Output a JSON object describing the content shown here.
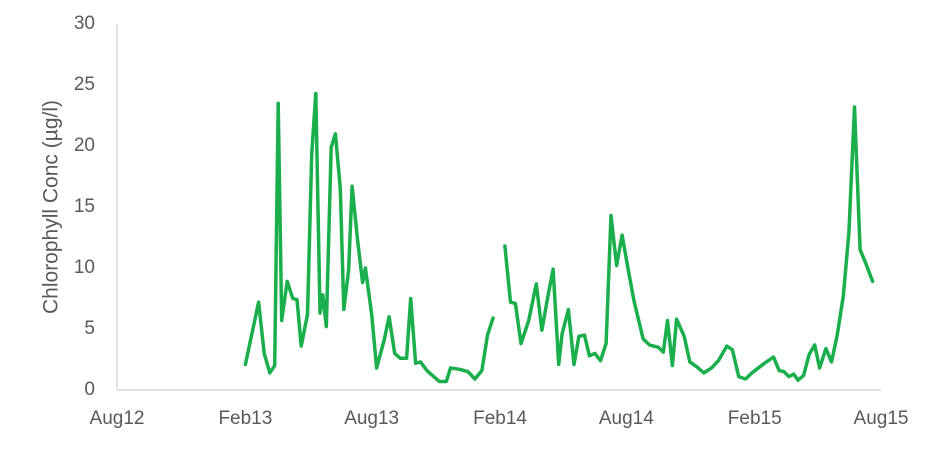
{
  "chart_data": {
    "type": "line",
    "title": "",
    "xlabel": "",
    "ylabel": "Chlorophyll Conc (µg/l)",
    "ylim": [
      0,
      30
    ],
    "xlim": [
      "2012-08-01",
      "2015-08-01"
    ],
    "yticks": [
      0,
      5,
      10,
      15,
      20,
      25,
      30
    ],
    "xticks": [
      {
        "date": "2012-08-01",
        "label": "Aug12"
      },
      {
        "date": "2013-02-01",
        "label": "Feb13"
      },
      {
        "date": "2013-08-01",
        "label": "Aug13"
      },
      {
        "date": "2014-02-01",
        "label": "Feb14"
      },
      {
        "date": "2014-08-01",
        "label": "Aug14"
      },
      {
        "date": "2015-02-01",
        "label": "Feb15"
      },
      {
        "date": "2015-08-01",
        "label": "Aug15"
      }
    ],
    "grid": false,
    "legend": "none",
    "series": [
      {
        "color": "#1AAF4B",
        "segments": [
          [
            [
              "2013-02-01",
              2.1
            ],
            [
              "2013-02-20",
              7.2
            ],
            [
              "2013-02-28",
              3.0
            ],
            [
              "2013-03-08",
              1.4
            ],
            [
              "2013-03-15",
              2.0
            ],
            [
              "2013-03-20",
              23.5
            ],
            [
              "2013-03-25",
              5.7
            ],
            [
              "2013-04-02",
              8.9
            ],
            [
              "2013-04-10",
              7.5
            ],
            [
              "2013-04-16",
              7.4
            ],
            [
              "2013-04-22",
              3.6
            ],
            [
              "2013-05-01",
              6.2
            ],
            [
              "2013-05-07",
              19.3
            ],
            [
              "2013-05-13",
              24.3
            ],
            [
              "2013-05-19",
              6.3
            ],
            [
              "2013-05-23",
              7.8
            ],
            [
              "2013-05-28",
              5.2
            ],
            [
              "2013-06-04",
              19.9
            ],
            [
              "2013-06-10",
              21.0
            ],
            [
              "2013-06-17",
              16.5
            ],
            [
              "2013-06-22",
              6.6
            ],
            [
              "2013-06-29",
              9.8
            ],
            [
              "2013-07-04",
              16.7
            ],
            [
              "2013-07-12",
              12.2
            ],
            [
              "2013-07-19",
              8.8
            ],
            [
              "2013-07-23",
              10.0
            ],
            [
              "2013-08-01",
              6.2
            ],
            [
              "2013-08-08",
              1.8
            ],
            [
              "2013-08-19",
              4.1
            ],
            [
              "2013-08-26",
              6.0
            ],
            [
              "2013-09-03",
              3.0
            ],
            [
              "2013-09-11",
              2.6
            ],
            [
              "2013-09-20",
              2.6
            ],
            [
              "2013-09-26",
              7.5
            ],
            [
              "2013-10-03",
              2.2
            ],
            [
              "2013-10-10",
              2.3
            ],
            [
              "2013-10-19",
              1.6
            ],
            [
              "2013-10-27",
              1.2
            ],
            [
              "2013-11-06",
              0.7
            ],
            [
              "2013-11-16",
              0.7
            ],
            [
              "2013-11-22",
              1.8
            ],
            [
              "2013-12-05",
              1.7
            ],
            [
              "2013-12-17",
              1.5
            ],
            [
              "2013-12-27",
              0.9
            ],
            [
              "2014-01-06",
              1.6
            ],
            [
              "2014-01-14",
              4.5
            ],
            [
              "2014-01-22",
              5.9
            ]
          ],
          [
            [
              "2014-02-08",
              11.8
            ],
            [
              "2014-02-16",
              7.2
            ],
            [
              "2014-02-23",
              7.1
            ],
            [
              "2014-03-03",
              3.8
            ],
            [
              "2014-03-14",
              5.7
            ],
            [
              "2014-03-25",
              8.7
            ],
            [
              "2014-04-02",
              4.9
            ],
            [
              "2014-04-10",
              7.5
            ],
            [
              "2014-04-18",
              9.9
            ],
            [
              "2014-04-26",
              2.1
            ],
            [
              "2014-05-01",
              4.6
            ],
            [
              "2014-05-10",
              6.6
            ],
            [
              "2014-05-18",
              2.1
            ],
            [
              "2014-05-25",
              4.4
            ],
            [
              "2014-06-02",
              4.5
            ],
            [
              "2014-06-09",
              2.8
            ],
            [
              "2014-06-17",
              3.0
            ],
            [
              "2014-06-25",
              2.4
            ],
            [
              "2014-07-03",
              3.8
            ],
            [
              "2014-07-10",
              14.3
            ],
            [
              "2014-07-18",
              10.2
            ],
            [
              "2014-07-26",
              12.7
            ],
            [
              "2014-08-03",
              10.1
            ],
            [
              "2014-08-12",
              7.3
            ],
            [
              "2014-08-25",
              4.2
            ],
            [
              "2014-09-03",
              3.7
            ],
            [
              "2014-09-16",
              3.5
            ],
            [
              "2014-09-23",
              3.1
            ],
            [
              "2014-09-29",
              5.7
            ],
            [
              "2014-10-06",
              2.0
            ],
            [
              "2014-10-12",
              5.8
            ],
            [
              "2014-10-23",
              4.4
            ],
            [
              "2014-10-31",
              2.3
            ],
            [
              "2014-11-10",
              1.9
            ],
            [
              "2014-11-20",
              1.4
            ],
            [
              "2014-12-01",
              1.8
            ],
            [
              "2014-12-11",
              2.4
            ],
            [
              "2014-12-23",
              3.6
            ],
            [
              "2014-12-31",
              3.3
            ],
            [
              "2015-01-09",
              1.1
            ],
            [
              "2015-01-19",
              0.9
            ],
            [
              "2015-01-28",
              1.4
            ],
            [
              "2015-02-15",
              2.2
            ],
            [
              "2015-02-28",
              2.7
            ],
            [
              "2015-03-08",
              1.6
            ],
            [
              "2015-03-15",
              1.5
            ],
            [
              "2015-03-22",
              1.1
            ],
            [
              "2015-03-29",
              1.3
            ],
            [
              "2015-04-04",
              0.8
            ],
            [
              "2015-04-12",
              1.2
            ],
            [
              "2015-04-20",
              2.9
            ],
            [
              "2015-04-28",
              3.7
            ],
            [
              "2015-05-05",
              1.8
            ],
            [
              "2015-05-14",
              3.4
            ],
            [
              "2015-05-22",
              2.3
            ],
            [
              "2015-05-30",
              4.4
            ],
            [
              "2015-06-08",
              7.7
            ],
            [
              "2015-06-16",
              12.9
            ],
            [
              "2015-06-24",
              23.2
            ],
            [
              "2015-07-02",
              11.5
            ],
            [
              "2015-07-10",
              10.4
            ],
            [
              "2015-07-20",
              8.9
            ]
          ]
        ]
      }
    ]
  }
}
